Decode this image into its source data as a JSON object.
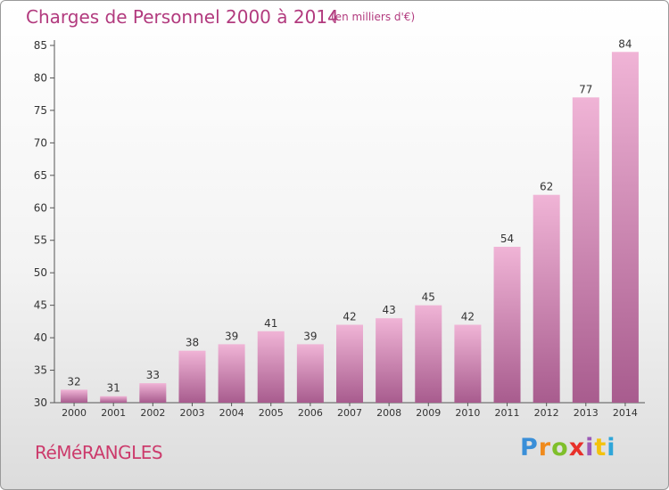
{
  "header": {
    "title": "Charges de Personnel 2000 à 2014",
    "subtitle": "(en milliers d'€)"
  },
  "footer": {
    "commune": "RéMéRANGLES",
    "logo": {
      "letters": [
        "P",
        "r",
        "o",
        "x",
        "i",
        "t",
        "i"
      ],
      "colors": [
        "#3a8fd8",
        "#f08a1c",
        "#7fbf2a",
        "#e8302a",
        "#9b59b6",
        "#f4c20d",
        "#2fa6d9"
      ]
    }
  },
  "colors": {
    "bar_light": "#f0b4d6",
    "bar_dark": "#a85c8e",
    "axis": "#555555",
    "grid": "#cfcfcf",
    "text": "#333333"
  },
  "chart_data": {
    "type": "bar",
    "title": "Charges de Personnel 2000 à 2014",
    "subtitle": "(en milliers d'€)",
    "xlabel": "",
    "ylabel": "",
    "categories": [
      "2000",
      "2001",
      "2002",
      "2003",
      "2004",
      "2005",
      "2006",
      "2007",
      "2008",
      "2009",
      "2010",
      "2011",
      "2012",
      "2013",
      "2014"
    ],
    "values": [
      32,
      31,
      33,
      38,
      39,
      41,
      39,
      42,
      43,
      45,
      42,
      54,
      62,
      77,
      84
    ],
    "ylim": [
      30,
      85
    ],
    "yticks": [
      30,
      35,
      40,
      45,
      50,
      55,
      60,
      65,
      70,
      75,
      80,
      85
    ],
    "grid": false,
    "data_labels": true
  }
}
